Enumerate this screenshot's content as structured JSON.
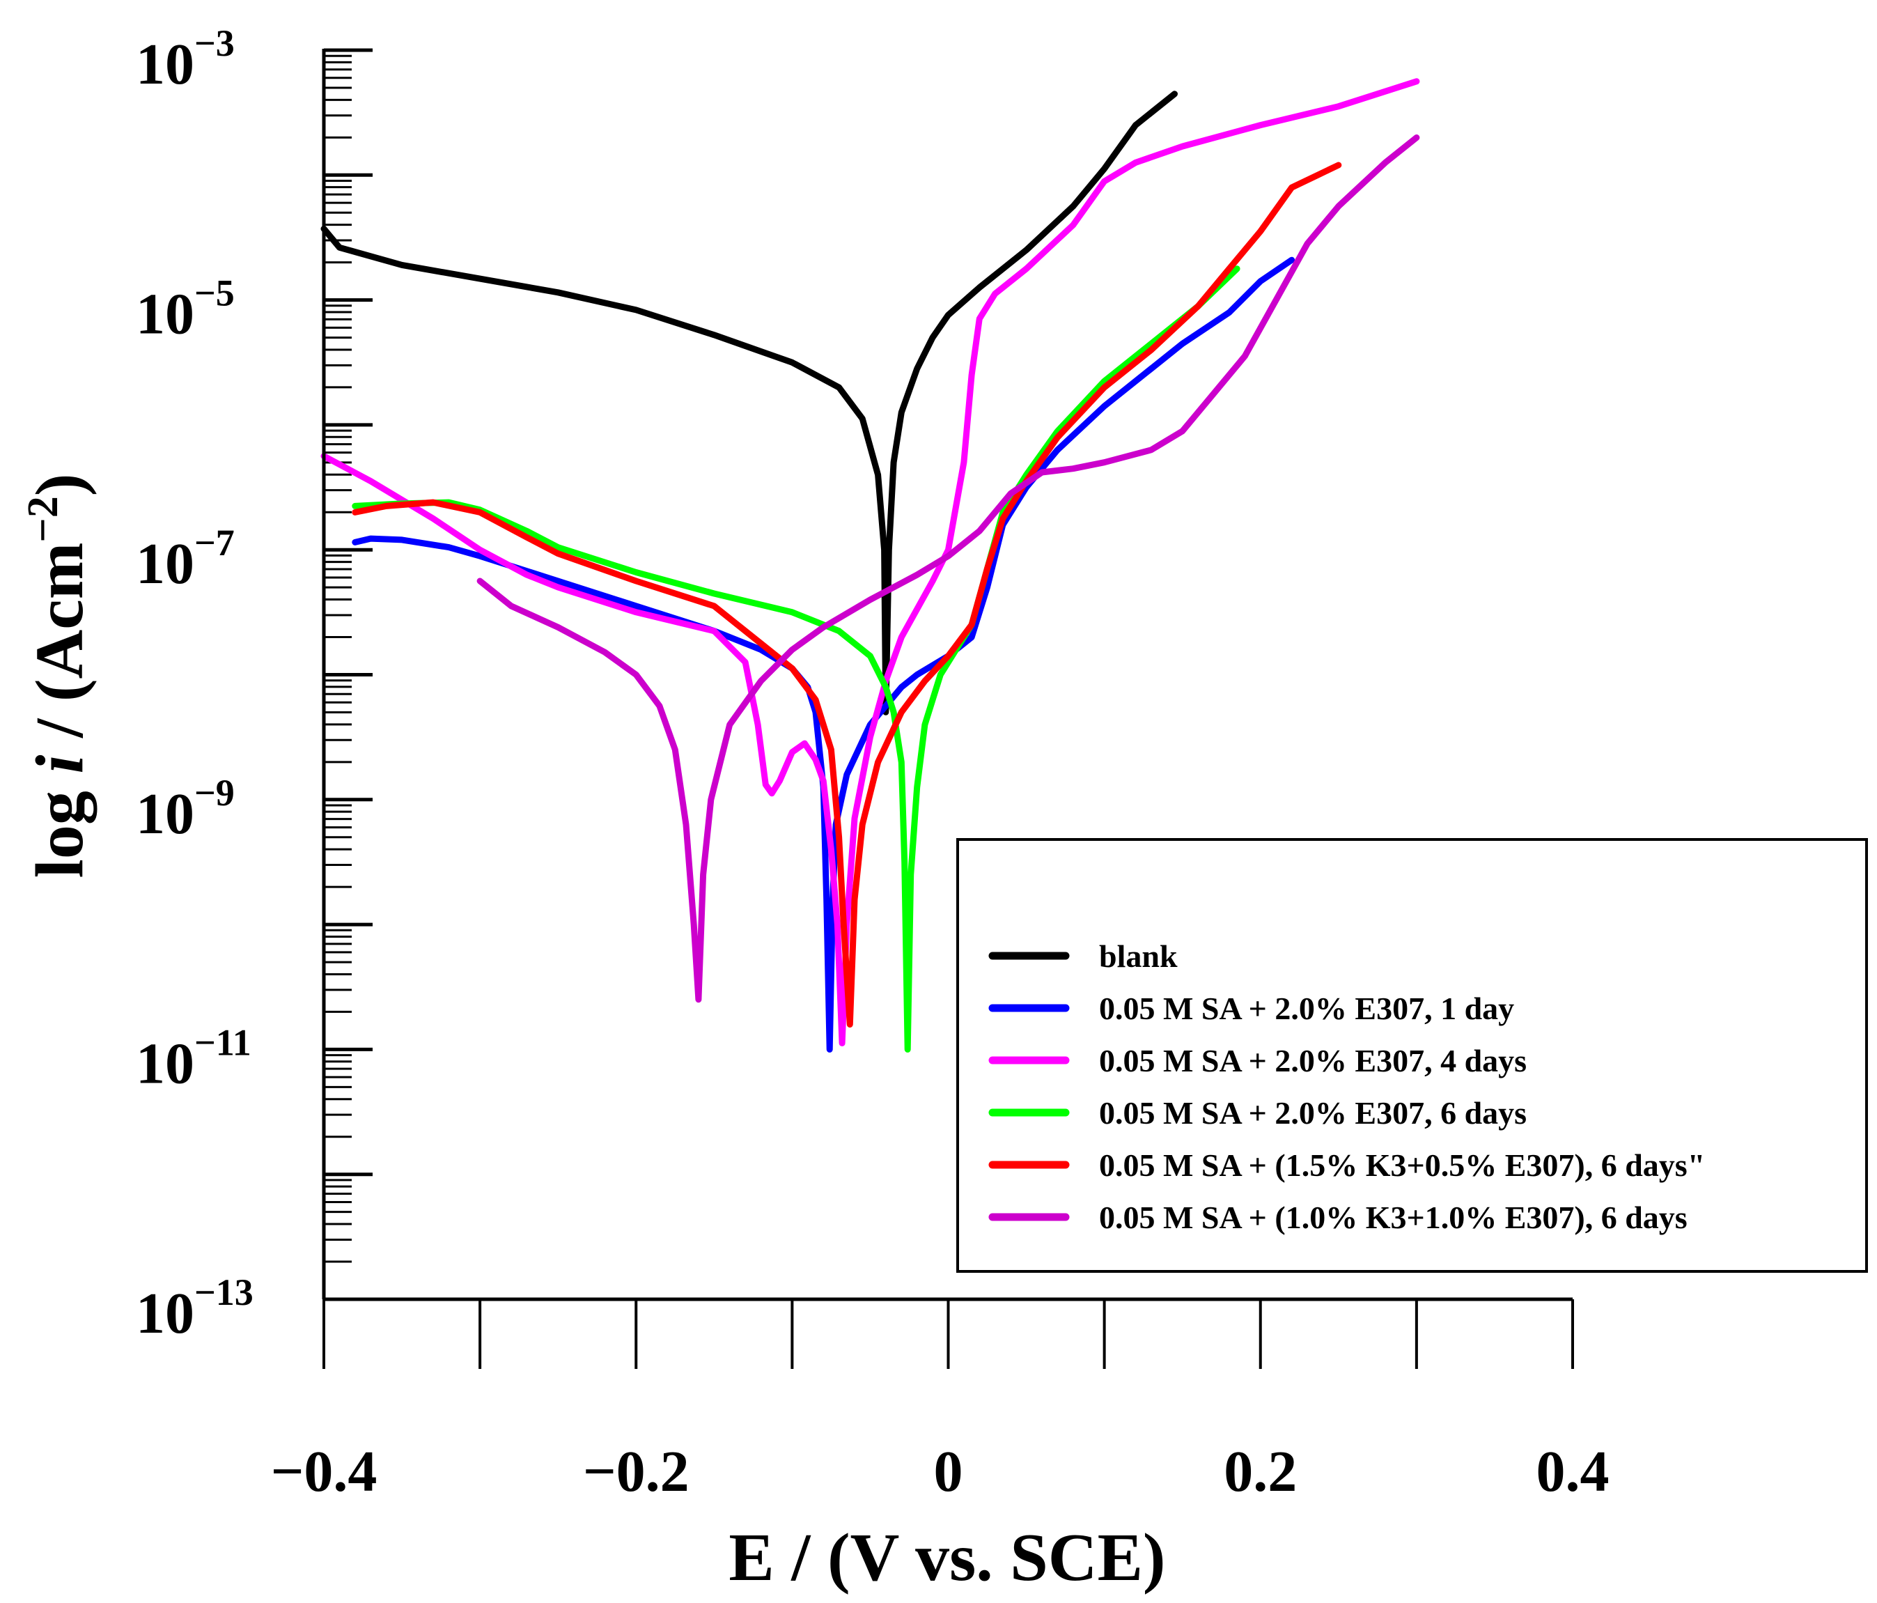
{
  "chart_data": {
    "type": "line",
    "title": "",
    "xlabel": "E / (V vs. SCE)",
    "ylabel_prefix": "log ",
    "ylabel_italic": "i",
    "ylabel_suffix": " / (Acm",
    "ylabel_exp": "−2",
    "ylabel_close": ")",
    "xlim": [
      -0.4,
      0.4
    ],
    "ylim_log10": [
      -13,
      -3
    ],
    "x_ticks": [
      -0.4,
      -0.3,
      -0.2,
      -0.1,
      0,
      0.1,
      0.2,
      0.3,
      0.4
    ],
    "x_tick_labels": [
      {
        "value": -0.4,
        "label": "−0.4"
      },
      {
        "value": -0.2,
        "label": "−0.2"
      },
      {
        "value": 0,
        "label": "0"
      },
      {
        "value": 0.2,
        "label": "0.2"
      },
      {
        "value": 0.4,
        "label": "0.4"
      }
    ],
    "y_tick_labels": [
      {
        "value": -3,
        "base": "10",
        "exp": "−3"
      },
      {
        "value": -5,
        "base": "10",
        "exp": "−5"
      },
      {
        "value": -7,
        "base": "10",
        "exp": "−7"
      },
      {
        "value": -9,
        "base": "10",
        "exp": "−9"
      },
      {
        "value": -11,
        "base": "10",
        "exp": "−11"
      },
      {
        "value": -13,
        "base": "10",
        "exp": "−13"
      }
    ],
    "legend_position": "bottom-right",
    "series": [
      {
        "name": "blank",
        "color": "#000000",
        "points": [
          [
            -0.4,
            -4.43
          ],
          [
            -0.39,
            -4.58
          ],
          [
            -0.35,
            -4.72
          ],
          [
            -0.3,
            -4.83
          ],
          [
            -0.25,
            -4.94
          ],
          [
            -0.2,
            -5.08
          ],
          [
            -0.15,
            -5.28
          ],
          [
            -0.1,
            -5.5
          ],
          [
            -0.07,
            -5.7
          ],
          [
            -0.055,
            -5.95
          ],
          [
            -0.045,
            -6.4
          ],
          [
            -0.041,
            -7.0
          ],
          [
            -0.04,
            -8.3
          ],
          [
            -0.038,
            -7.0
          ],
          [
            -0.035,
            -6.3
          ],
          [
            -0.03,
            -5.9
          ],
          [
            -0.02,
            -5.55
          ],
          [
            -0.01,
            -5.3
          ],
          [
            0,
            -5.12
          ],
          [
            0.02,
            -4.9
          ],
          [
            0.05,
            -4.6
          ],
          [
            0.08,
            -4.25
          ],
          [
            0.1,
            -3.95
          ],
          [
            0.12,
            -3.6
          ],
          [
            0.145,
            -3.35
          ]
        ]
      },
      {
        "name": "0.05 M SA + 2.0% E307, 1 day",
        "color": "#0000ff",
        "points": [
          [
            -0.38,
            -6.94
          ],
          [
            -0.37,
            -6.91
          ],
          [
            -0.35,
            -6.92
          ],
          [
            -0.32,
            -6.98
          ],
          [
            -0.3,
            -7.05
          ],
          [
            -0.25,
            -7.25
          ],
          [
            -0.2,
            -7.45
          ],
          [
            -0.15,
            -7.65
          ],
          [
            -0.12,
            -7.8
          ],
          [
            -0.1,
            -7.95
          ],
          [
            -0.09,
            -8.1
          ],
          [
            -0.085,
            -8.3
          ],
          [
            -0.08,
            -8.9
          ],
          [
            -0.078,
            -9.8
          ],
          [
            -0.076,
            -11.0
          ],
          [
            -0.074,
            -9.8
          ],
          [
            -0.072,
            -9.2
          ],
          [
            -0.065,
            -8.8
          ],
          [
            -0.05,
            -8.4
          ],
          [
            -0.03,
            -8.1
          ],
          [
            -0.02,
            -8.0
          ],
          [
            0.0,
            -7.85
          ],
          [
            0.015,
            -7.7
          ],
          [
            0.025,
            -7.3
          ],
          [
            0.035,
            -6.8
          ],
          [
            0.05,
            -6.5
          ],
          [
            0.07,
            -6.2
          ],
          [
            0.1,
            -5.85
          ],
          [
            0.13,
            -5.55
          ],
          [
            0.15,
            -5.35
          ],
          [
            0.18,
            -5.1
          ],
          [
            0.2,
            -4.85
          ],
          [
            0.22,
            -4.68
          ]
        ]
      },
      {
        "name": "0.05 M SA + 2.0%  E307, 4 days",
        "color": "#ff00ff",
        "points": [
          [
            -0.4,
            -6.25
          ],
          [
            -0.37,
            -6.45
          ],
          [
            -0.33,
            -6.75
          ],
          [
            -0.3,
            -7.0
          ],
          [
            -0.27,
            -7.2
          ],
          [
            -0.25,
            -7.3
          ],
          [
            -0.2,
            -7.5
          ],
          [
            -0.15,
            -7.65
          ],
          [
            -0.13,
            -7.9
          ],
          [
            -0.122,
            -8.4
          ],
          [
            -0.117,
            -8.88
          ],
          [
            -0.113,
            -8.95
          ],
          [
            -0.108,
            -8.85
          ],
          [
            -0.1,
            -8.62
          ],
          [
            -0.092,
            -8.55
          ],
          [
            -0.085,
            -8.68
          ],
          [
            -0.08,
            -8.85
          ],
          [
            -0.075,
            -9.4
          ],
          [
            -0.071,
            -10.0
          ],
          [
            -0.068,
            -10.95
          ],
          [
            -0.065,
            -10.0
          ],
          [
            -0.06,
            -9.15
          ],
          [
            -0.05,
            -8.5
          ],
          [
            -0.04,
            -8.05
          ],
          [
            -0.03,
            -7.7
          ],
          [
            -0.01,
            -7.25
          ],
          [
            0.0,
            -7.0
          ],
          [
            0.01,
            -6.3
          ],
          [
            0.015,
            -5.6
          ],
          [
            0.02,
            -5.15
          ],
          [
            0.03,
            -4.95
          ],
          [
            0.05,
            -4.75
          ],
          [
            0.08,
            -4.4
          ],
          [
            0.1,
            -4.05
          ],
          [
            0.12,
            -3.9
          ],
          [
            0.15,
            -3.77
          ],
          [
            0.2,
            -3.6
          ],
          [
            0.25,
            -3.45
          ],
          [
            0.3,
            -3.25
          ]
        ]
      },
      {
        "name": "0.05 M SA + 2.0% E307, 6 days",
        "color": "#00ff00",
        "points": [
          [
            -0.38,
            -6.65
          ],
          [
            -0.35,
            -6.63
          ],
          [
            -0.32,
            -6.62
          ],
          [
            -0.3,
            -6.68
          ],
          [
            -0.27,
            -6.85
          ],
          [
            -0.25,
            -6.98
          ],
          [
            -0.2,
            -7.18
          ],
          [
            -0.15,
            -7.35
          ],
          [
            -0.1,
            -7.5
          ],
          [
            -0.07,
            -7.65
          ],
          [
            -0.05,
            -7.85
          ],
          [
            -0.04,
            -8.1
          ],
          [
            -0.035,
            -8.3
          ],
          [
            -0.03,
            -8.7
          ],
          [
            -0.028,
            -9.5
          ],
          [
            -0.026,
            -11.0
          ],
          [
            -0.024,
            -9.6
          ],
          [
            -0.02,
            -8.9
          ],
          [
            -0.015,
            -8.4
          ],
          [
            -0.005,
            -8.0
          ],
          [
            0.005,
            -7.8
          ],
          [
            0.015,
            -7.6
          ],
          [
            0.025,
            -7.15
          ],
          [
            0.035,
            -6.7
          ],
          [
            0.05,
            -6.4
          ],
          [
            0.07,
            -6.05
          ],
          [
            0.1,
            -5.65
          ],
          [
            0.13,
            -5.35
          ],
          [
            0.16,
            -5.05
          ],
          [
            0.185,
            -4.75
          ]
        ]
      },
      {
        "name": "0.05 M SA + (1.5% K3+0.5% E307), 6 days\"",
        "color": "#ff0000",
        "points": [
          [
            -0.38,
            -6.7
          ],
          [
            -0.36,
            -6.65
          ],
          [
            -0.33,
            -6.62
          ],
          [
            -0.3,
            -6.7
          ],
          [
            -0.27,
            -6.9
          ],
          [
            -0.25,
            -7.03
          ],
          [
            -0.2,
            -7.25
          ],
          [
            -0.15,
            -7.45
          ],
          [
            -0.12,
            -7.75
          ],
          [
            -0.1,
            -7.95
          ],
          [
            -0.085,
            -8.2
          ],
          [
            -0.075,
            -8.6
          ],
          [
            -0.07,
            -9.3
          ],
          [
            -0.067,
            -10.0
          ],
          [
            -0.063,
            -10.8
          ],
          [
            -0.06,
            -9.8
          ],
          [
            -0.055,
            -9.2
          ],
          [
            -0.045,
            -8.7
          ],
          [
            -0.03,
            -8.3
          ],
          [
            -0.015,
            -8.05
          ],
          [
            0.0,
            -7.85
          ],
          [
            0.015,
            -7.6
          ],
          [
            0.025,
            -7.15
          ],
          [
            0.035,
            -6.75
          ],
          [
            0.05,
            -6.45
          ],
          [
            0.07,
            -6.1
          ],
          [
            0.1,
            -5.7
          ],
          [
            0.13,
            -5.4
          ],
          [
            0.16,
            -5.05
          ],
          [
            0.18,
            -4.75
          ],
          [
            0.2,
            -4.45
          ],
          [
            0.22,
            -4.1
          ],
          [
            0.25,
            -3.92
          ]
        ]
      },
      {
        "name": "0.05 M SA + (1.0% K3+1.0% E307), 6 days",
        "color": "#cc00cc",
        "points": [
          [
            -0.3,
            -7.25
          ],
          [
            -0.28,
            -7.45
          ],
          [
            -0.25,
            -7.62
          ],
          [
            -0.22,
            -7.82
          ],
          [
            -0.2,
            -8.0
          ],
          [
            -0.185,
            -8.25
          ],
          [
            -0.175,
            -8.6
          ],
          [
            -0.168,
            -9.2
          ],
          [
            -0.163,
            -10.0
          ],
          [
            -0.16,
            -10.6
          ],
          [
            -0.157,
            -9.6
          ],
          [
            -0.152,
            -9.0
          ],
          [
            -0.14,
            -8.4
          ],
          [
            -0.12,
            -8.05
          ],
          [
            -0.1,
            -7.8
          ],
          [
            -0.08,
            -7.62
          ],
          [
            -0.05,
            -7.4
          ],
          [
            -0.02,
            -7.2
          ],
          [
            0.0,
            -7.05
          ],
          [
            0.02,
            -6.85
          ],
          [
            0.04,
            -6.55
          ],
          [
            0.06,
            -6.38
          ],
          [
            0.08,
            -6.35
          ],
          [
            0.1,
            -6.3
          ],
          [
            0.13,
            -6.2
          ],
          [
            0.15,
            -6.05
          ],
          [
            0.17,
            -5.75
          ],
          [
            0.19,
            -5.45
          ],
          [
            0.21,
            -5.0
          ],
          [
            0.23,
            -4.55
          ],
          [
            0.25,
            -4.25
          ],
          [
            0.28,
            -3.9
          ],
          [
            0.3,
            -3.7
          ]
        ]
      }
    ]
  }
}
